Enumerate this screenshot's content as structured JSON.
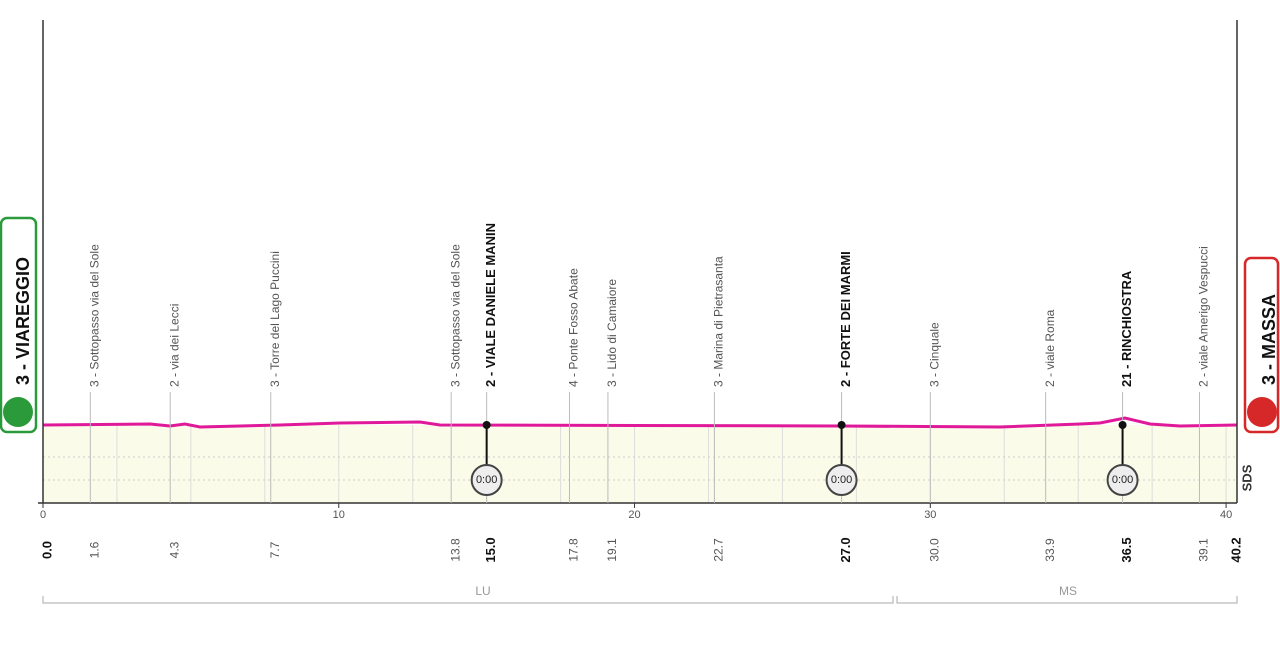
{
  "start": {
    "label": "3 - VIAREGGIO",
    "km": "0.0"
  },
  "finish": {
    "label": "3 - MASSA",
    "km": "40.2"
  },
  "waypoints": [
    {
      "label": "3 - Sottopasso via del Sole",
      "km": "1.6"
    },
    {
      "label": "2 - via dei Lecci",
      "km": "4.3"
    },
    {
      "label": "3 - Torre del Lago Puccini",
      "km": "7.7"
    },
    {
      "label": "3 - Sottopasso via del Sole",
      "km": "13.8"
    },
    {
      "label": "2 - VIALE DANIELE MANIN",
      "km": "15.0",
      "time": "0:00"
    },
    {
      "label": "4 - Ponte Fosso Abate",
      "km": "17.8"
    },
    {
      "label": "3 - Lido di Camaiore",
      "km": "19.1"
    },
    {
      "label": "3 - Marina di Pietrasanta",
      "km": "22.7"
    },
    {
      "label": "2 - FORTE DEI MARMI",
      "km": "27.0",
      "time": "0:00"
    },
    {
      "label": "3 - Cinquale",
      "km": "30.0"
    },
    {
      "label": "2 - viale Roma",
      "km": "33.9"
    },
    {
      "label": "21 - RINCHIOSTRA",
      "km": "36.5",
      "time": "0:00"
    },
    {
      "label": "2 - viale Amerigo Vespucci",
      "km": "39.1"
    }
  ],
  "axis_ticks": [
    "0",
    "10",
    "20",
    "30",
    "40"
  ],
  "regions": [
    {
      "label": "LU"
    },
    {
      "label": "MS"
    }
  ],
  "brand": "SDS"
}
